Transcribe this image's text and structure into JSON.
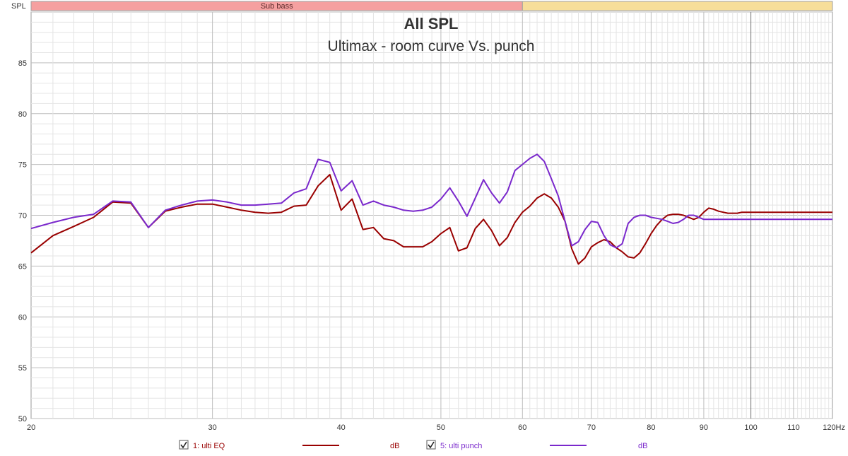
{
  "chart_data": {
    "type": "line",
    "title": "All SPL",
    "subtitle": "Ultimax - room curve Vs. punch",
    "ylabel": "SPL",
    "xunit": "Hz",
    "xscale": "log",
    "xlim": [
      20,
      120
    ],
    "ylim": [
      50,
      90
    ],
    "grid": true,
    "x_ticks": [
      {
        "value": 20,
        "label": "20"
      },
      {
        "value": 30,
        "label": "30"
      },
      {
        "value": 40,
        "label": "40"
      },
      {
        "value": 50,
        "label": "50"
      },
      {
        "value": 60,
        "label": "60"
      },
      {
        "value": 70,
        "label": "70"
      },
      {
        "value": 80,
        "label": "80"
      },
      {
        "value": 90,
        "label": "90"
      },
      {
        "value": 100,
        "label": "100"
      },
      {
        "value": 110,
        "label": "110"
      },
      {
        "value": 120,
        "label": "120Hz"
      }
    ],
    "y_ticks": [
      50,
      55,
      60,
      65,
      70,
      75,
      80,
      85
    ],
    "band_bar": [
      {
        "label": "Sub bass",
        "from": 20,
        "to": 60,
        "color": "#f5a0a0"
      },
      {
        "label": "",
        "from": 60,
        "to": 120,
        "color": "#f7de9a"
      }
    ],
    "series": [
      {
        "name": "1: ulti EQ",
        "unit": "dB",
        "color": "#990000",
        "x": [
          20,
          21,
          22,
          23,
          24,
          25,
          26,
          27,
          28,
          29,
          30,
          31,
          32,
          33,
          34,
          35,
          36,
          37,
          38,
          39,
          40,
          41,
          42,
          43,
          44,
          45,
          46,
          47,
          48,
          49,
          50,
          51,
          52,
          53,
          54,
          55,
          56,
          57,
          58,
          59,
          60,
          61,
          62,
          63,
          64,
          65,
          66,
          67,
          68,
          69,
          70,
          71,
          72,
          73,
          74,
          75,
          76,
          77,
          78,
          79,
          80,
          81,
          82,
          83,
          84,
          85,
          86,
          87,
          88,
          89,
          90,
          91,
          92,
          93,
          94,
          95,
          96,
          97,
          98,
          99,
          100,
          101,
          102,
          103,
          104,
          105,
          106,
          107,
          108,
          109,
          110,
          111,
          112,
          113,
          114,
          115,
          116,
          117,
          118,
          119,
          120
        ],
        "values": [
          66.3,
          68.0,
          68.9,
          69.8,
          71.3,
          71.2,
          68.8,
          70.4,
          70.8,
          71.1,
          71.1,
          70.8,
          70.5,
          70.3,
          70.2,
          70.3,
          70.9,
          71.0,
          72.9,
          74.0,
          70.5,
          71.6,
          68.6,
          68.8,
          67.7,
          67.5,
          66.9,
          66.9,
          66.9,
          67.4,
          68.2,
          68.8,
          66.5,
          66.8,
          68.7,
          69.6,
          68.5,
          67.0,
          67.8,
          69.3,
          70.3,
          70.9,
          71.7,
          72.1,
          71.7,
          70.8,
          69.4,
          66.7,
          65.2,
          65.8,
          66.9,
          67.3,
          67.6,
          67.4,
          66.8,
          66.4,
          65.9,
          65.8,
          66.3,
          67.2,
          68.2,
          69.0,
          69.6,
          70.0,
          70.1,
          70.1,
          70.0,
          69.8,
          69.6,
          69.8,
          70.3,
          70.7,
          70.6,
          70.4,
          70.3,
          70.2,
          70.2,
          70.2,
          70.3,
          70.3,
          70.3,
          70.3,
          70.3,
          70.3,
          70.3,
          70.3,
          70.3,
          70.3,
          70.3,
          70.3,
          70.3,
          70.3,
          70.3,
          70.3,
          70.3,
          70.3,
          70.3,
          70.3,
          70.3,
          70.3,
          70.3
        ]
      },
      {
        "name": "5: ulti punch",
        "unit": "dB",
        "color": "#7a28cc",
        "x": [
          20,
          21,
          22,
          23,
          24,
          25,
          26,
          27,
          28,
          29,
          30,
          31,
          32,
          33,
          34,
          35,
          36,
          37,
          38,
          39,
          40,
          41,
          42,
          43,
          44,
          45,
          46,
          47,
          48,
          49,
          50,
          51,
          52,
          53,
          54,
          55,
          56,
          57,
          58,
          59,
          60,
          61,
          62,
          63,
          64,
          65,
          66,
          67,
          68,
          69,
          70,
          71,
          72,
          73,
          74,
          75,
          76,
          77,
          78,
          79,
          80,
          81,
          82,
          83,
          84,
          85,
          86,
          87,
          88,
          89,
          90,
          91,
          92,
          93,
          94,
          95,
          96,
          97,
          98,
          99,
          100,
          101,
          102,
          103,
          104,
          105,
          106,
          107,
          108,
          109,
          110,
          111,
          112,
          113,
          114,
          115,
          116,
          117,
          118,
          119,
          120
        ],
        "values": [
          68.7,
          69.3,
          69.8,
          70.1,
          71.4,
          71.3,
          68.8,
          70.5,
          71.0,
          71.4,
          71.5,
          71.3,
          71.0,
          71.0,
          71.1,
          71.2,
          72.2,
          72.6,
          75.5,
          75.2,
          72.4,
          73.4,
          71.0,
          71.4,
          71.0,
          70.8,
          70.5,
          70.4,
          70.5,
          70.8,
          71.6,
          72.7,
          71.4,
          69.9,
          71.7,
          73.5,
          72.2,
          71.2,
          72.3,
          74.4,
          75.0,
          75.6,
          76.0,
          75.3,
          73.6,
          71.9,
          69.4,
          67.0,
          67.4,
          68.6,
          69.4,
          69.3,
          68.0,
          67.1,
          66.8,
          67.2,
          69.2,
          69.8,
          70.0,
          70.0,
          69.8,
          69.7,
          69.6,
          69.4,
          69.2,
          69.3,
          69.6,
          70.0,
          70.0,
          69.8,
          69.6,
          69.6,
          69.6,
          69.6,
          69.6,
          69.6,
          69.6,
          69.6,
          69.6,
          69.6,
          69.6,
          69.6,
          69.6,
          69.6,
          69.6,
          69.6,
          69.6,
          69.6,
          69.6,
          69.6,
          69.6,
          69.6,
          69.6,
          69.6,
          69.6,
          69.6,
          69.6,
          69.6,
          69.6,
          69.6,
          69.6
        ]
      }
    ]
  }
}
